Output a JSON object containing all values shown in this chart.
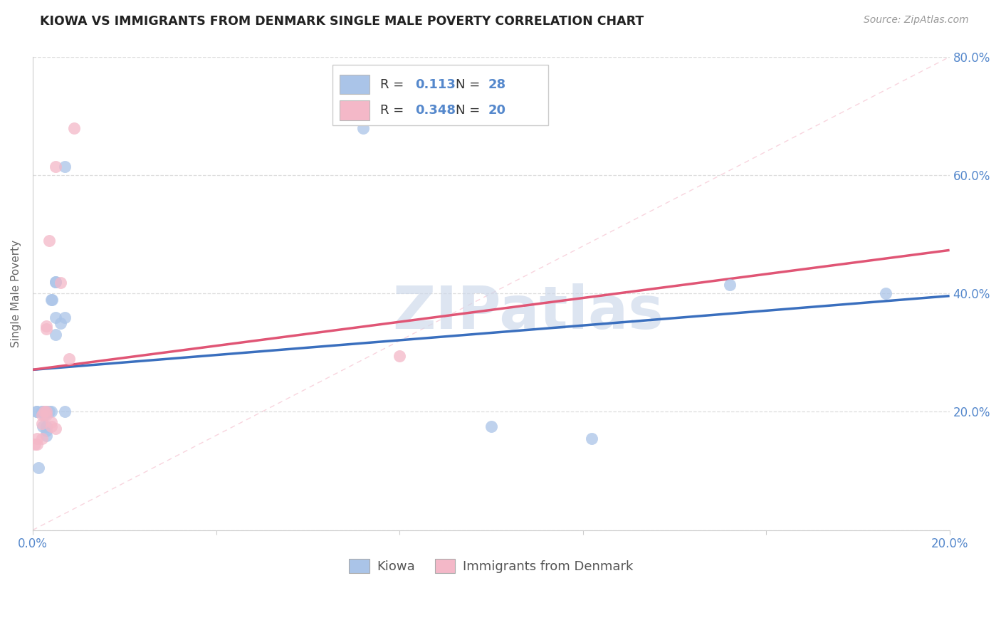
{
  "title": "KIOWA VS IMMIGRANTS FROM DENMARK SINGLE MALE POVERTY CORRELATION CHART",
  "source": "Source: ZipAtlas.com",
  "ylabel": "Single Male Poverty",
  "xlim": [
    -0.002,
    0.202
  ],
  "ylim": [
    -0.02,
    0.86
  ],
  "plot_xlim": [
    0.0,
    0.2
  ],
  "plot_ylim": [
    0.0,
    0.8
  ],
  "kiowa_R": 0.113,
  "kiowa_N": 28,
  "denmark_R": 0.348,
  "denmark_N": 20,
  "kiowa_color": "#aac4e8",
  "denmark_color": "#f4b8c8",
  "line_kiowa_color": "#3a6fbe",
  "line_denmark_color": "#e05575",
  "diag_color": "#f4b8c8",
  "kiowa_x": [
    0.0008,
    0.001,
    0.0012,
    0.002,
    0.002,
    0.0022,
    0.0025,
    0.003,
    0.003,
    0.003,
    0.003,
    0.0035,
    0.004,
    0.004,
    0.0042,
    0.005,
    0.005,
    0.005,
    0.005,
    0.006,
    0.007,
    0.007,
    0.007,
    0.072,
    0.1,
    0.122,
    0.152,
    0.186
  ],
  "kiowa_y": [
    0.2,
    0.2,
    0.105,
    0.2,
    0.2,
    0.175,
    0.195,
    0.2,
    0.175,
    0.168,
    0.16,
    0.2,
    0.2,
    0.39,
    0.39,
    0.42,
    0.42,
    0.36,
    0.33,
    0.35,
    0.36,
    0.615,
    0.2,
    0.68,
    0.175,
    0.155,
    0.415,
    0.4
  ],
  "denmark_x": [
    0.0005,
    0.001,
    0.001,
    0.002,
    0.002,
    0.002,
    0.0025,
    0.003,
    0.003,
    0.003,
    0.003,
    0.0035,
    0.004,
    0.004,
    0.005,
    0.005,
    0.006,
    0.008,
    0.009,
    0.08
  ],
  "denmark_y": [
    0.145,
    0.145,
    0.155,
    0.155,
    0.18,
    0.195,
    0.2,
    0.195,
    0.2,
    0.34,
    0.345,
    0.49,
    0.182,
    0.175,
    0.172,
    0.615,
    0.418,
    0.29,
    0.68,
    0.295
  ],
  "watermark_text": "ZIPatlas",
  "background_color": "#FFFFFF",
  "grid_color": "#DDDDDD",
  "title_color": "#222222",
  "tick_color": "#5588CC",
  "legend_kiowa_label": "Kiowa",
  "legend_denmark_label": "Immigrants from Denmark",
  "yticks": [
    0.0,
    0.2,
    0.4,
    0.6,
    0.8
  ],
  "xticks": [
    0.0,
    0.04,
    0.08,
    0.12,
    0.16,
    0.2
  ]
}
